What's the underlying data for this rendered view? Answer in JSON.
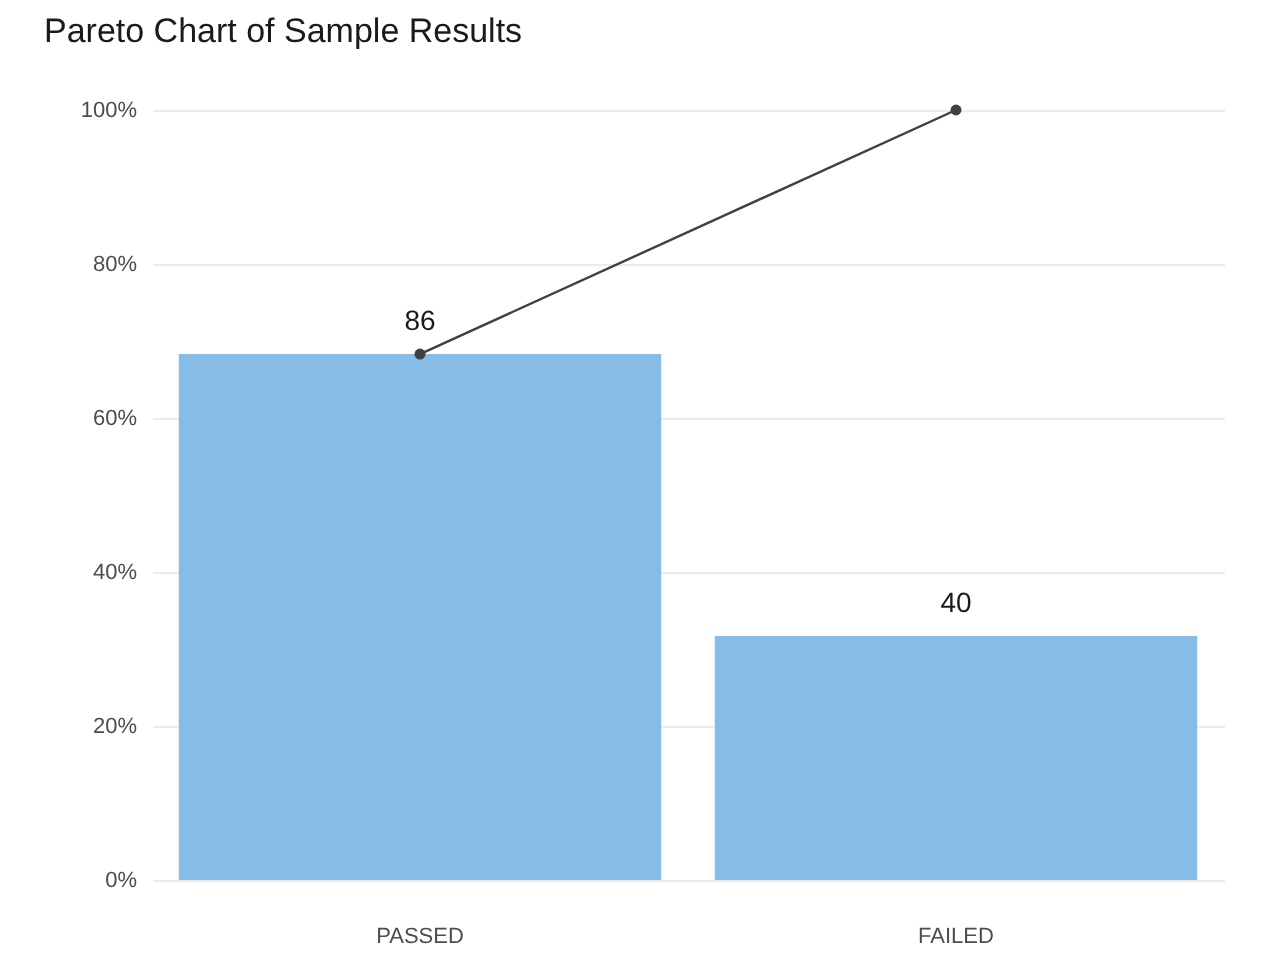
{
  "chart_data": {
    "type": "bar",
    "title": "Pareto Chart of Sample Results",
    "categories": [
      "PASSED",
      "FAILED"
    ],
    "series": [
      {
        "color": "#85bce8",
        "values": [
          68.3,
          31.7
        ]
      },
      {
        "type": "line",
        "color": "#404040",
        "values": [
          68.3,
          100
        ]
      }
    ],
    "annotations": [
      {
        "text": "86",
        "x": "PASSED",
        "y": 68.3
      },
      {
        "text": "40",
        "x": "FAILED",
        "y": 31.7
      }
    ],
    "ylim": [
      0,
      100
    ],
    "yticks": [
      {
        "value": 0,
        "label": "0%"
      },
      {
        "value": 20,
        "label": "20%"
      },
      {
        "value": 40,
        "label": "40%"
      },
      {
        "value": 60,
        "label": "60%"
      },
      {
        "value": 80,
        "label": "80%"
      },
      {
        "value": 100,
        "label": "100%"
      }
    ],
    "grid": "y",
    "marker": "circle",
    "line_style": "solid"
  }
}
